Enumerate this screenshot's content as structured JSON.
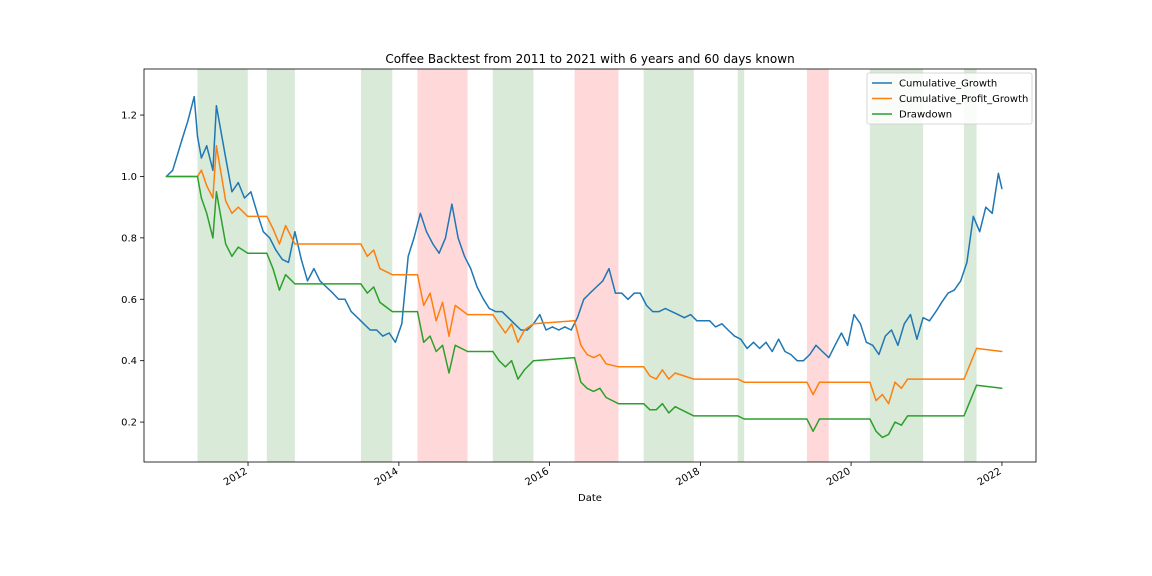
{
  "chart_data": {
    "type": "line",
    "title": "Coffee Backtest from 2011 to 2021 with 6 years and 60 days known",
    "xlabel": "Date",
    "ylabel": "",
    "xlim": [
      "2010-08-15",
      "2022-06-15"
    ],
    "ylim": [
      0.07,
      1.35
    ],
    "x_ticks": [
      "2012-01-01",
      "2014-01-01",
      "2016-01-01",
      "2018-01-01",
      "2020-01-01",
      "2022-01-01"
    ],
    "x_tick_labels": [
      "2012",
      "2014",
      "2016",
      "2018",
      "2020",
      "2022"
    ],
    "y_ticks": [
      0.2,
      0.4,
      0.6,
      0.8,
      1.0,
      1.2
    ],
    "y_tick_labels": [
      "0.2",
      "0.4",
      "0.6",
      "0.8",
      "1.0",
      "1.2"
    ],
    "grid": false,
    "legend_position": "top-right",
    "shaded_regions": [
      {
        "start": "2011-05-01",
        "end": "2011-12-31",
        "color": "#d9ead9"
      },
      {
        "start": "2012-04-01",
        "end": "2012-08-15",
        "color": "#d9ead9"
      },
      {
        "start": "2013-07-01",
        "end": "2013-11-30",
        "color": "#d9ead9"
      },
      {
        "start": "2014-04-01",
        "end": "2014-11-30",
        "color": "#ffd9d9"
      },
      {
        "start": "2015-04-01",
        "end": "2015-10-15",
        "color": "#d9ead9"
      },
      {
        "start": "2016-05-01",
        "end": "2016-11-30",
        "color": "#ffd9d9"
      },
      {
        "start": "2017-04-01",
        "end": "2017-11-30",
        "color": "#d9ead9"
      },
      {
        "start": "2018-07-01",
        "end": "2018-08-01",
        "color": "#d9ead9"
      },
      {
        "start": "2019-06-01",
        "end": "2019-09-15",
        "color": "#ffd9d9"
      },
      {
        "start": "2020-04-01",
        "end": "2020-12-15",
        "color": "#d9ead9"
      },
      {
        "start": "2021-07-01",
        "end": "2021-08-31",
        "color": "#d9ead9"
      }
    ],
    "series": [
      {
        "name": "Cumulative_Growth",
        "color": "#1f77b4",
        "x": [
          "2010-12-01",
          "2011-01-01",
          "2011-02-15",
          "2011-03-15",
          "2011-04-15",
          "2011-05-01",
          "2011-05-20",
          "2011-06-15",
          "2011-07-15",
          "2011-08-01",
          "2011-09-15",
          "2011-10-15",
          "2011-11-15",
          "2011-12-15",
          "2012-01-15",
          "2012-02-15",
          "2012-03-15",
          "2012-04-15",
          "2012-05-15",
          "2012-06-15",
          "2012-07-15",
          "2012-08-15",
          "2012-09-15",
          "2012-10-15",
          "2012-11-15",
          "2012-12-15",
          "2013-01-15",
          "2013-02-15",
          "2013-03-15",
          "2013-04-15",
          "2013-05-15",
          "2013-06-15",
          "2013-07-15",
          "2013-08-15",
          "2013-09-15",
          "2013-10-15",
          "2013-11-15",
          "2013-12-15",
          "2014-01-15",
          "2014-02-15",
          "2014-03-15",
          "2014-04-15",
          "2014-05-15",
          "2014-06-15",
          "2014-07-15",
          "2014-08-15",
          "2014-09-15",
          "2014-10-15",
          "2014-11-15",
          "2014-12-15",
          "2015-01-15",
          "2015-02-15",
          "2015-03-15",
          "2015-04-15",
          "2015-05-15",
          "2015-06-15",
          "2015-07-15",
          "2015-08-15",
          "2015-09-15",
          "2015-10-15",
          "2015-11-15",
          "2015-12-15",
          "2016-01-15",
          "2016-02-15",
          "2016-03-15",
          "2016-04-15",
          "2016-05-15",
          "2016-06-15",
          "2016-07-15",
          "2016-08-15",
          "2016-09-15",
          "2016-10-15",
          "2016-11-15",
          "2016-12-15",
          "2017-01-15",
          "2017-02-15",
          "2017-03-15",
          "2017-04-15",
          "2017-05-15",
          "2017-06-15",
          "2017-07-15",
          "2017-08-15",
          "2017-09-15",
          "2017-10-15",
          "2017-11-15",
          "2017-12-15",
          "2018-01-15",
          "2018-02-15",
          "2018-03-15",
          "2018-04-15",
          "2018-05-15",
          "2018-06-15",
          "2018-07-15",
          "2018-08-15",
          "2018-09-15",
          "2018-10-15",
          "2018-11-15",
          "2018-12-15",
          "2019-01-15",
          "2019-02-15",
          "2019-03-15",
          "2019-04-15",
          "2019-05-15",
          "2019-06-15",
          "2019-07-15",
          "2019-08-15",
          "2019-09-15",
          "2019-10-15",
          "2019-11-15",
          "2019-12-15",
          "2020-01-15",
          "2020-02-15",
          "2020-03-15",
          "2020-04-15",
          "2020-05-15",
          "2020-06-15",
          "2020-07-15",
          "2020-08-15",
          "2020-09-15",
          "2020-10-15",
          "2020-11-15",
          "2020-12-15",
          "2021-01-15",
          "2021-02-15",
          "2021-03-15",
          "2021-04-15",
          "2021-05-15",
          "2021-06-15",
          "2021-07-15",
          "2021-08-15",
          "2021-09-15",
          "2021-10-15",
          "2021-11-15",
          "2021-12-15",
          "2022-01-01"
        ],
        "values": [
          1.0,
          1.02,
          1.12,
          1.18,
          1.26,
          1.13,
          1.06,
          1.1,
          1.02,
          1.23,
          1.06,
          0.95,
          0.98,
          0.93,
          0.95,
          0.88,
          0.82,
          0.8,
          0.76,
          0.73,
          0.72,
          0.82,
          0.73,
          0.66,
          0.7,
          0.66,
          0.64,
          0.62,
          0.6,
          0.6,
          0.56,
          0.54,
          0.52,
          0.5,
          0.5,
          0.48,
          0.49,
          0.46,
          0.52,
          0.74,
          0.8,
          0.88,
          0.82,
          0.78,
          0.75,
          0.8,
          0.91,
          0.8,
          0.74,
          0.7,
          0.64,
          0.6,
          0.57,
          0.56,
          0.56,
          0.54,
          0.52,
          0.5,
          0.5,
          0.52,
          0.55,
          0.5,
          0.51,
          0.5,
          0.51,
          0.5,
          0.54,
          0.6,
          0.62,
          0.64,
          0.66,
          0.7,
          0.62,
          0.62,
          0.6,
          0.62,
          0.62,
          0.58,
          0.56,
          0.56,
          0.57,
          0.56,
          0.55,
          0.54,
          0.55,
          0.53,
          0.53,
          0.53,
          0.51,
          0.52,
          0.5,
          0.48,
          0.47,
          0.44,
          0.46,
          0.44,
          0.46,
          0.43,
          0.47,
          0.43,
          0.42,
          0.4,
          0.4,
          0.42,
          0.45,
          0.43,
          0.41,
          0.45,
          0.49,
          0.45,
          0.55,
          0.52,
          0.46,
          0.45,
          0.42,
          0.48,
          0.5,
          0.45,
          0.52,
          0.55,
          0.47,
          0.54,
          0.53,
          0.56,
          0.59,
          0.62,
          0.63,
          0.66,
          0.72,
          0.87,
          0.82,
          0.9,
          0.88,
          1.01,
          0.96
        ]
      },
      {
        "name": "Cumulative_Profit_Growth",
        "color": "#ff7f0e",
        "x": [
          "2010-12-01",
          "2011-05-01",
          "2011-05-20",
          "2011-06-15",
          "2011-07-15",
          "2011-08-01",
          "2011-09-15",
          "2011-10-15",
          "2011-11-15",
          "2011-12-31",
          "2012-04-01",
          "2012-05-01",
          "2012-06-01",
          "2012-07-01",
          "2012-08-15",
          "2013-07-01",
          "2013-08-01",
          "2013-09-01",
          "2013-10-01",
          "2013-11-30",
          "2014-04-01",
          "2014-05-01",
          "2014-06-01",
          "2014-07-01",
          "2014-08-01",
          "2014-09-01",
          "2014-10-01",
          "2014-11-30",
          "2015-04-01",
          "2015-05-01",
          "2015-06-01",
          "2015-07-01",
          "2015-08-01",
          "2015-09-01",
          "2015-10-15",
          "2016-05-01",
          "2016-06-01",
          "2016-07-01",
          "2016-08-01",
          "2016-09-01",
          "2016-10-01",
          "2016-11-30",
          "2017-04-01",
          "2017-05-01",
          "2017-06-01",
          "2017-07-01",
          "2017-08-01",
          "2017-09-01",
          "2017-11-30",
          "2018-07-01",
          "2018-08-01",
          "2019-06-01",
          "2019-07-01",
          "2019-08-01",
          "2019-09-15",
          "2020-04-01",
          "2020-05-01",
          "2020-06-01",
          "2020-07-01",
          "2020-08-01",
          "2020-09-01",
          "2020-10-01",
          "2020-12-15",
          "2021-07-01",
          "2021-08-31",
          "2022-01-01"
        ],
        "values": [
          1.0,
          1.0,
          1.02,
          0.97,
          0.93,
          1.1,
          0.92,
          0.88,
          0.9,
          0.87,
          0.87,
          0.83,
          0.78,
          0.84,
          0.78,
          0.78,
          0.74,
          0.76,
          0.7,
          0.68,
          0.68,
          0.58,
          0.62,
          0.53,
          0.59,
          0.48,
          0.58,
          0.55,
          0.55,
          0.52,
          0.49,
          0.52,
          0.46,
          0.5,
          0.52,
          0.53,
          0.45,
          0.42,
          0.41,
          0.42,
          0.39,
          0.38,
          0.38,
          0.35,
          0.34,
          0.37,
          0.34,
          0.36,
          0.34,
          0.34,
          0.33,
          0.33,
          0.29,
          0.33,
          0.33,
          0.33,
          0.27,
          0.29,
          0.26,
          0.33,
          0.31,
          0.34,
          0.34,
          0.34,
          0.44,
          0.43
        ]
      },
      {
        "name": "Drawdown",
        "color": "#2ca02c",
        "x": [
          "2010-12-01",
          "2011-05-01",
          "2011-05-20",
          "2011-06-15",
          "2011-07-15",
          "2011-08-01",
          "2011-09-15",
          "2011-10-15",
          "2011-11-15",
          "2011-12-31",
          "2012-04-01",
          "2012-05-01",
          "2012-06-01",
          "2012-07-01",
          "2012-08-15",
          "2013-07-01",
          "2013-08-01",
          "2013-09-01",
          "2013-10-01",
          "2013-11-30",
          "2014-04-01",
          "2014-05-01",
          "2014-06-01",
          "2014-07-01",
          "2014-08-01",
          "2014-09-01",
          "2014-10-01",
          "2014-11-30",
          "2015-04-01",
          "2015-05-01",
          "2015-06-01",
          "2015-07-01",
          "2015-08-01",
          "2015-09-01",
          "2015-10-15",
          "2016-05-01",
          "2016-06-01",
          "2016-07-01",
          "2016-08-01",
          "2016-09-01",
          "2016-10-01",
          "2016-11-30",
          "2017-04-01",
          "2017-05-01",
          "2017-06-01",
          "2017-07-01",
          "2017-08-01",
          "2017-09-01",
          "2017-11-30",
          "2018-07-01",
          "2018-08-01",
          "2019-06-01",
          "2019-07-01",
          "2019-08-01",
          "2019-09-15",
          "2020-04-01",
          "2020-05-01",
          "2020-06-01",
          "2020-07-01",
          "2020-08-01",
          "2020-09-01",
          "2020-10-01",
          "2020-12-15",
          "2021-07-01",
          "2021-08-31",
          "2022-01-01"
        ],
        "values": [
          1.0,
          1.0,
          0.93,
          0.88,
          0.8,
          0.95,
          0.78,
          0.74,
          0.77,
          0.75,
          0.75,
          0.7,
          0.63,
          0.68,
          0.65,
          0.65,
          0.62,
          0.64,
          0.59,
          0.56,
          0.56,
          0.46,
          0.48,
          0.43,
          0.45,
          0.36,
          0.45,
          0.43,
          0.43,
          0.4,
          0.38,
          0.4,
          0.34,
          0.37,
          0.4,
          0.41,
          0.33,
          0.31,
          0.3,
          0.31,
          0.28,
          0.26,
          0.26,
          0.24,
          0.24,
          0.26,
          0.23,
          0.25,
          0.22,
          0.22,
          0.21,
          0.21,
          0.17,
          0.21,
          0.21,
          0.21,
          0.17,
          0.15,
          0.16,
          0.2,
          0.19,
          0.22,
          0.22,
          0.22,
          0.32,
          0.31
        ]
      }
    ]
  }
}
